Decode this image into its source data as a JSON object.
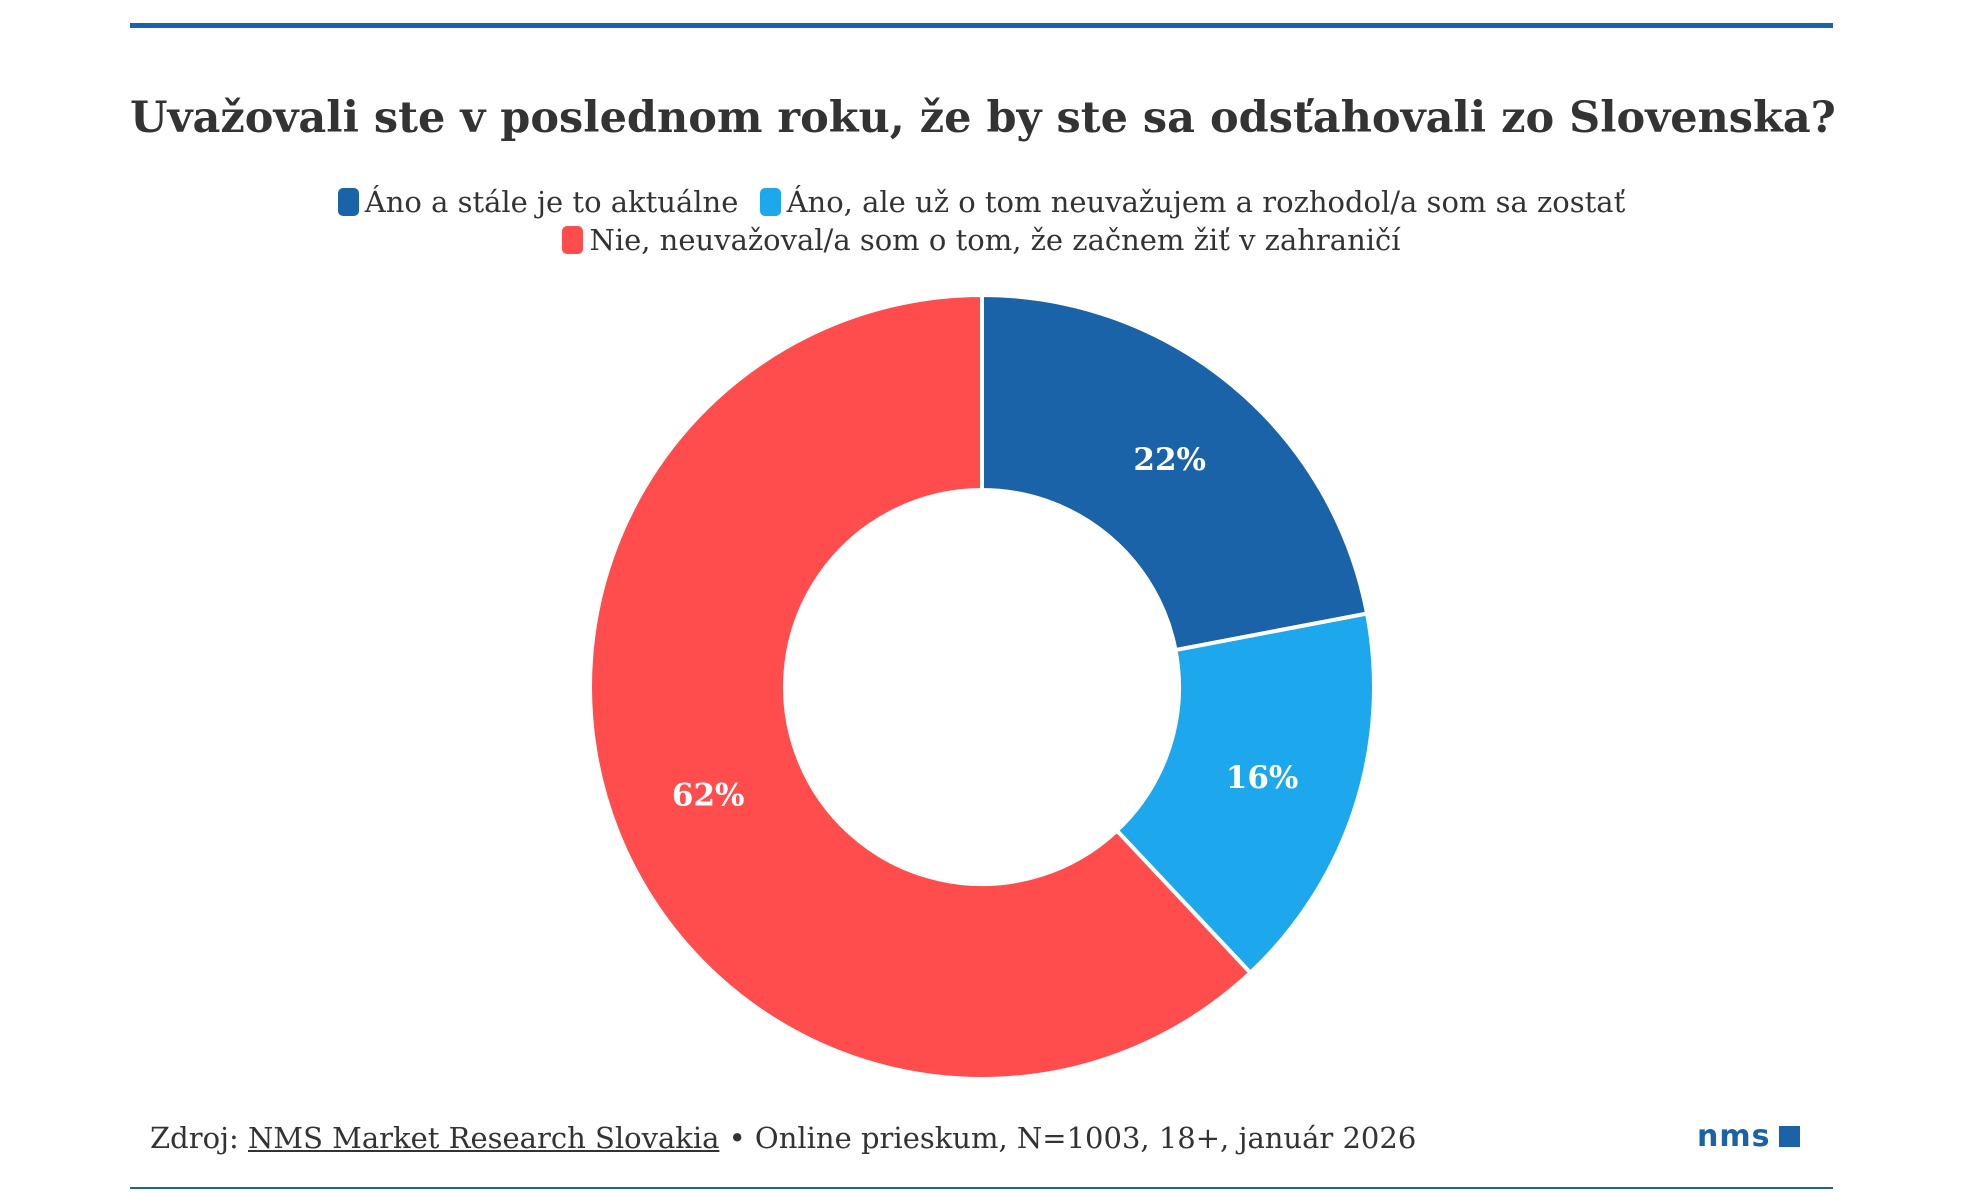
{
  "title": "Uvažovali ste v poslednom roku, že by ste sa odsťahovali zo Slovenska?",
  "legend": [
    {
      "label": "Áno a stále je to aktuálne",
      "color": "#1b63a8"
    },
    {
      "label": "Áno, ale už o tom neuvažujem a rozhodol/a som sa zostať",
      "color": "#1da7ec"
    },
    {
      "label": "Nie, neuvažoval/a som o tom, že začnem žiť v zahraničí",
      "color": "#ff4d4d"
    }
  ],
  "chart_data": {
    "type": "pie",
    "title": "Uvažovali ste v poslednom roku, že by ste sa odsťahovali zo Slovenska?",
    "donut": true,
    "legend_position": "top",
    "categories": [
      "Áno a stále je to aktuálne",
      "Áno, ale už o tom neuvažujem a rozhodol/a som sa zostať",
      "Nie, neuvažoval/a som o tom, že začnem žiť v zahraničí"
    ],
    "values": [
      22,
      16,
      62
    ],
    "labels": [
      "22%",
      "16%",
      "62%"
    ],
    "colors": [
      "#1b63a8",
      "#1da7ec",
      "#ff4d4d"
    ]
  },
  "footer": {
    "source_prefix": "Zdroj: ",
    "source_link": "NMS Market Research Slovakia",
    "source_suffix": " • Online prieskum, N=1003, 18+, január 2026"
  },
  "logo": {
    "text": "nms"
  }
}
